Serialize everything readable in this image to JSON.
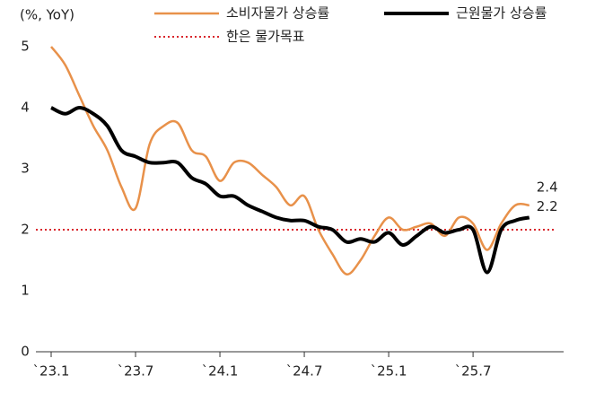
{
  "chart_data": {
    "type": "line",
    "y_label": "(%, YoY)",
    "categories": [
      "`23.1",
      null,
      null,
      null,
      null,
      null,
      "`23.7",
      null,
      null,
      null,
      null,
      null,
      "`24.1",
      null,
      null,
      null,
      null,
      null,
      "`24.7",
      null,
      null,
      null,
      null,
      null,
      "`25.1",
      null,
      null,
      null,
      null,
      null,
      "`25.7",
      null,
      null,
      null,
      null
    ],
    "series": [
      {
        "name": "소비자물가 상승률",
        "color": "#e8914a",
        "width": 2.5,
        "values": [
          5.0,
          4.7,
          4.2,
          3.7,
          3.3,
          2.7,
          2.35,
          3.4,
          3.7,
          3.75,
          3.3,
          3.2,
          2.8,
          3.1,
          3.1,
          2.9,
          2.7,
          2.4,
          2.55,
          2.0,
          1.6,
          1.27,
          1.5,
          1.9,
          2.2,
          2.0,
          2.05,
          2.1,
          1.9,
          2.2,
          2.1,
          1.67,
          2.1,
          2.4,
          2.4
        ]
      },
      {
        "name": "근원물가 상승률",
        "color": "#000000",
        "width": 4,
        "values": [
          4.0,
          3.9,
          4.0,
          3.9,
          3.7,
          3.3,
          3.2,
          3.1,
          3.1,
          3.1,
          2.85,
          2.75,
          2.55,
          2.55,
          2.4,
          2.3,
          2.2,
          2.15,
          2.15,
          2.05,
          2.0,
          1.8,
          1.85,
          1.8,
          1.95,
          1.75,
          1.9,
          2.05,
          1.95,
          2.0,
          2.0,
          1.3,
          2.0,
          2.15,
          2.2
        ]
      }
    ],
    "target": {
      "name": "한은 물가목표",
      "value": 2,
      "color": "#d9262c"
    },
    "ylim": [
      0,
      5
    ],
    "yticks": [
      0,
      1,
      2,
      3,
      4,
      5
    ]
  }
}
